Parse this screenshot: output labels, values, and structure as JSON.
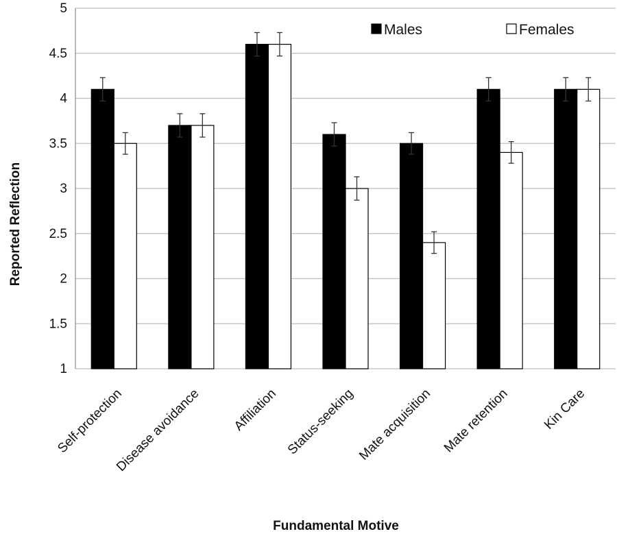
{
  "chart_data": {
    "type": "bar",
    "title": "",
    "xlabel": "Fundamental Motive",
    "ylabel": "Reported Reflection",
    "ylim": [
      1,
      5
    ],
    "yticks": [
      "1",
      "1.5",
      "2",
      "2.5",
      "3",
      "3.5",
      "4",
      "4.5",
      "5"
    ],
    "grid": true,
    "legend_placement": "top-right",
    "categories": [
      "Self-protection",
      "Disease avoidance",
      "Affiliation",
      "Status-seeking",
      "Mate acquisition",
      "Mate retention",
      "Kin Care"
    ],
    "series": [
      {
        "name": "Males",
        "color": "#000000",
        "values": [
          4.1,
          3.7,
          4.6,
          3.6,
          3.5,
          4.1,
          4.1
        ],
        "errors": [
          0.13,
          0.13,
          0.13,
          0.13,
          0.12,
          0.13,
          0.13
        ]
      },
      {
        "name": "Females",
        "color": "#ffffff",
        "values": [
          3.5,
          3.7,
          4.6,
          3.0,
          2.4,
          3.4,
          4.1
        ],
        "errors": [
          0.12,
          0.13,
          0.13,
          0.13,
          0.12,
          0.12,
          0.13
        ]
      }
    ]
  }
}
